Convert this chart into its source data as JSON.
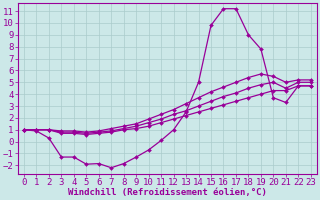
{
  "xlabel": "Windchill (Refroidissement éolien,°C)",
  "xlim": [
    -0.5,
    23.5
  ],
  "ylim": [
    -2.7,
    11.7
  ],
  "xticks": [
    0,
    1,
    2,
    3,
    4,
    5,
    6,
    7,
    8,
    9,
    10,
    11,
    12,
    13,
    14,
    15,
    16,
    17,
    18,
    19,
    20,
    21,
    22,
    23
  ],
  "yticks": [
    -2,
    -1,
    0,
    1,
    2,
    3,
    4,
    5,
    6,
    7,
    8,
    9,
    10,
    11
  ],
  "bg_color": "#cce8e8",
  "line_color": "#990099",
  "grid_color": "#aacccc",
  "spike_x": [
    0,
    1,
    2,
    3,
    4,
    5,
    6,
    7,
    8,
    9,
    10,
    11,
    12,
    13,
    14,
    15,
    16,
    17,
    18,
    19,
    20,
    21,
    22,
    23
  ],
  "spike_y": [
    1.0,
    0.9,
    0.3,
    -1.3,
    -1.3,
    -1.9,
    -1.85,
    -2.2,
    -1.85,
    -1.3,
    -0.7,
    0.1,
    1.0,
    2.5,
    5.0,
    9.8,
    11.2,
    11.2,
    9.0,
    7.8,
    3.7,
    3.3,
    4.7,
    4.7
  ],
  "line_low_x": [
    0,
    1,
    2,
    3,
    4,
    5,
    6,
    7,
    8,
    9,
    10,
    11,
    12,
    13,
    14,
    15,
    16,
    17,
    18,
    19,
    20,
    21,
    22,
    23
  ],
  "line_low_y": [
    1.0,
    1.0,
    1.0,
    0.7,
    0.7,
    0.6,
    0.7,
    0.8,
    1.0,
    1.1,
    1.3,
    1.6,
    1.9,
    2.2,
    2.5,
    2.8,
    3.1,
    3.4,
    3.7,
    4.0,
    4.3,
    4.3,
    4.7,
    4.7
  ],
  "line_mid_x": [
    0,
    1,
    2,
    3,
    4,
    5,
    6,
    7,
    8,
    9,
    10,
    11,
    12,
    13,
    14,
    15,
    16,
    17,
    18,
    19,
    20,
    21,
    22,
    23
  ],
  "line_mid_y": [
    1.0,
    1.0,
    1.0,
    0.8,
    0.8,
    0.7,
    0.8,
    0.9,
    1.1,
    1.3,
    1.6,
    1.9,
    2.3,
    2.6,
    3.0,
    3.4,
    3.8,
    4.1,
    4.5,
    4.8,
    5.0,
    4.5,
    5.0,
    5.0
  ],
  "line_high_x": [
    0,
    1,
    2,
    3,
    4,
    5,
    6,
    7,
    8,
    9,
    10,
    11,
    12,
    13,
    14,
    15,
    16,
    17,
    18,
    19,
    20,
    21,
    22,
    23
  ],
  "line_high_y": [
    1.0,
    1.0,
    1.0,
    0.9,
    0.9,
    0.8,
    0.9,
    1.1,
    1.3,
    1.5,
    1.9,
    2.3,
    2.7,
    3.2,
    3.7,
    4.2,
    4.6,
    5.0,
    5.4,
    5.7,
    5.5,
    5.0,
    5.2,
    5.2
  ],
  "font_size": 6.5,
  "marker": "D",
  "markersize": 2.0,
  "linewidth": 0.9
}
